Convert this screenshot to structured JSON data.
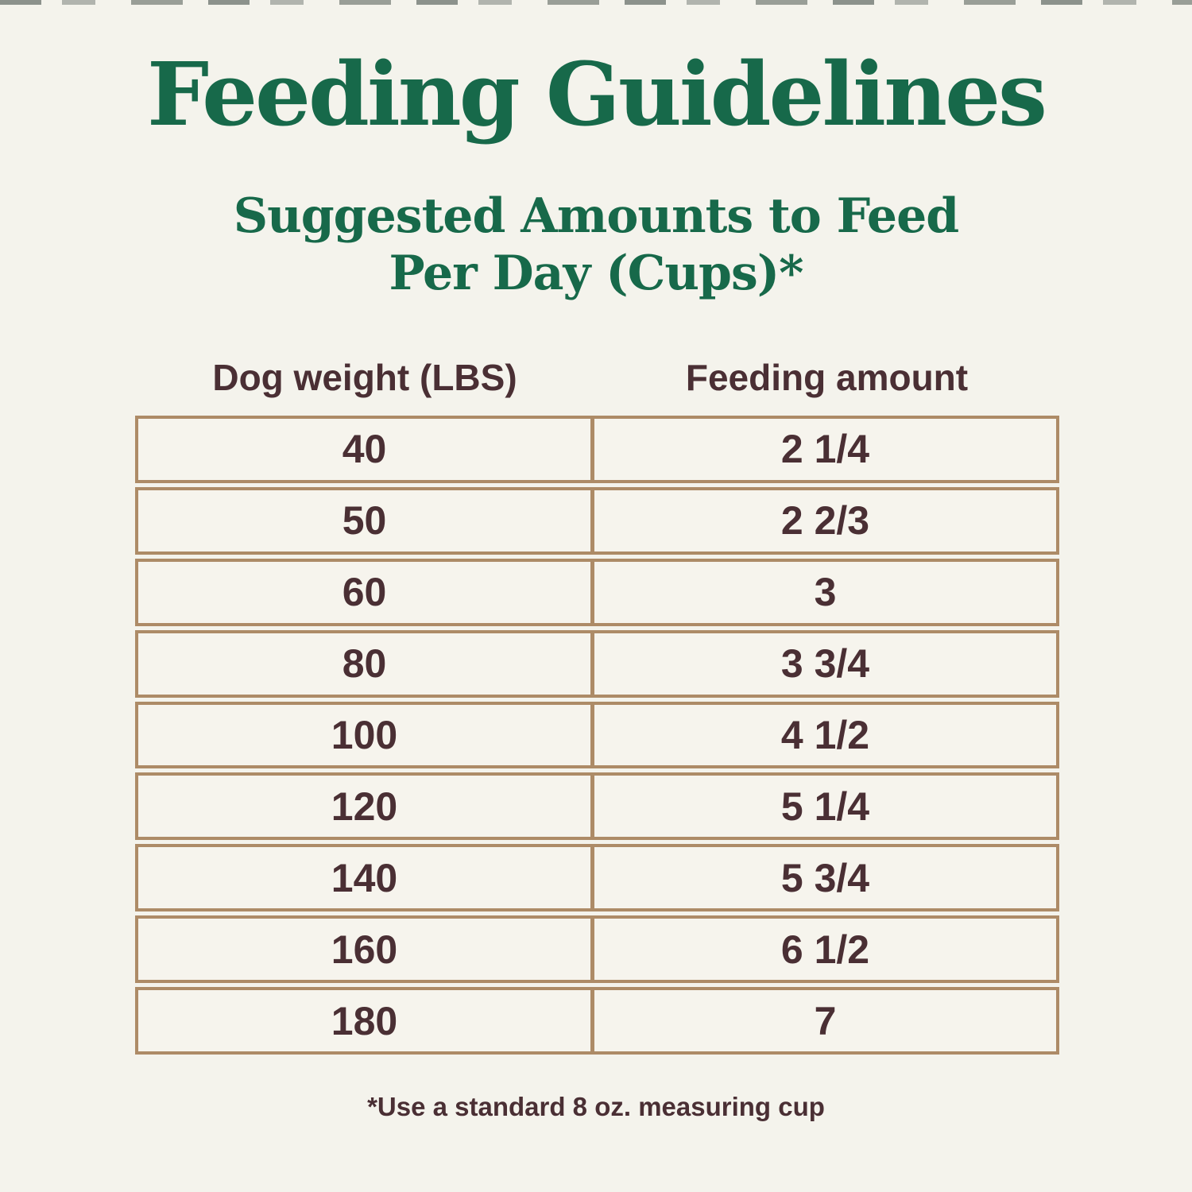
{
  "page": {
    "title": "Feeding Guidelines",
    "subtitle_line1": "Suggested Amounts to Feed",
    "subtitle_line2": "Per Day (Cups)*",
    "footnote": "*Use a standard 8 oz. measuring cup",
    "colors": {
      "background": "#f4f3ec",
      "title_green": "#17694a",
      "text_brown": "#4a2f34",
      "table_border_tan": "#ad8b67"
    }
  },
  "chart_data": {
    "type": "table",
    "title": "Feeding Guidelines — Suggested Amounts to Feed Per Day (Cups)*",
    "columns": [
      "Dog weight (LBS)",
      "Feeding amount"
    ],
    "rows": [
      [
        "40",
        "2 1/4"
      ],
      [
        "50",
        "2 2/3"
      ],
      [
        "60",
        "3"
      ],
      [
        "80",
        "3 3/4"
      ],
      [
        "100",
        "4 1/2"
      ],
      [
        "120",
        "5 1/4"
      ],
      [
        "140",
        "5 3/4"
      ],
      [
        "160",
        "6 1/2"
      ],
      [
        "180",
        "7"
      ]
    ],
    "footnote": "*Use a standard 8 oz. measuring cup",
    "layout": {
      "grid": true,
      "legend": false,
      "column_split": "50/50"
    }
  }
}
